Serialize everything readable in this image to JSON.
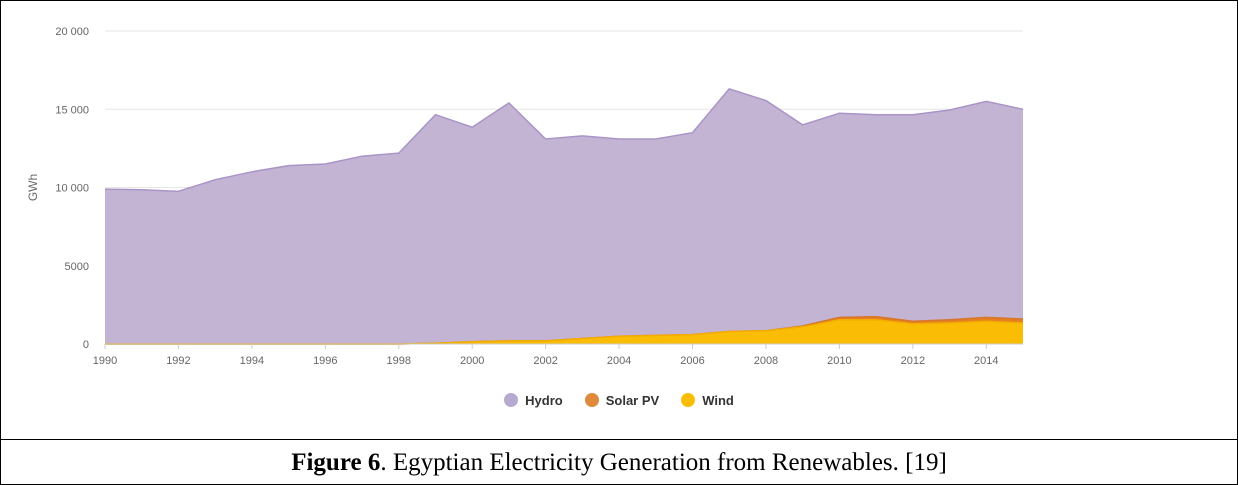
{
  "chart_data": {
    "type": "area",
    "stacked": true,
    "ylabel": "GWh",
    "ylim": [
      0,
      20000
    ],
    "yticks": [
      "0",
      "5000",
      "10 000",
      "15 000",
      "20 000"
    ],
    "ytick_values": [
      0,
      5000,
      10000,
      15000,
      20000
    ],
    "xticks": [
      1990,
      1992,
      1994,
      1996,
      1998,
      2000,
      2002,
      2004,
      2006,
      2008,
      2010,
      2012,
      2014
    ],
    "x": [
      1990,
      1991,
      1992,
      1993,
      1994,
      1995,
      1996,
      1997,
      1998,
      1999,
      2000,
      2001,
      2002,
      2003,
      2004,
      2005,
      2006,
      2007,
      2008,
      2009,
      2010,
      2011,
      2012,
      2013,
      2014,
      2015
    ],
    "series": [
      {
        "name": "Wind",
        "color": "#fbbc05",
        "values": [
          0,
          0,
          0,
          0,
          0,
          0,
          0,
          0,
          0,
          50,
          150,
          200,
          200,
          350,
          500,
          550,
          600,
          800,
          850,
          1100,
          1550,
          1550,
          1300,
          1350,
          1450,
          1350
        ]
      },
      {
        "name": "Solar PV",
        "color": "#e67e22",
        "values": [
          0,
          0,
          0,
          0,
          0,
          0,
          0,
          0,
          0,
          0,
          0,
          0,
          0,
          0,
          0,
          0,
          0,
          0,
          0,
          50,
          150,
          200,
          150,
          200,
          250,
          250
        ]
      },
      {
        "name": "Hydro",
        "color": "#c3b4d4",
        "values": [
          9900,
          9850,
          9750,
          10500,
          11000,
          11400,
          11500,
          12000,
          12200,
          14600,
          13700,
          15200,
          12900,
          12950,
          12600,
          12550,
          12900,
          15500,
          14700,
          12850,
          13050,
          12900,
          13200,
          13400,
          13800,
          13400
        ]
      }
    ],
    "legend": [
      {
        "name": "Hydro",
        "color": "#b8a9d0"
      },
      {
        "name": "Solar PV",
        "color": "#e08a3c"
      },
      {
        "name": "Wind",
        "color": "#fbbc05"
      }
    ],
    "legend_position": "bottom-center",
    "grid": true
  },
  "caption": {
    "label": "Figure 6",
    "text": ". Egyptian Electricity Generation from Renewables. [19]"
  }
}
